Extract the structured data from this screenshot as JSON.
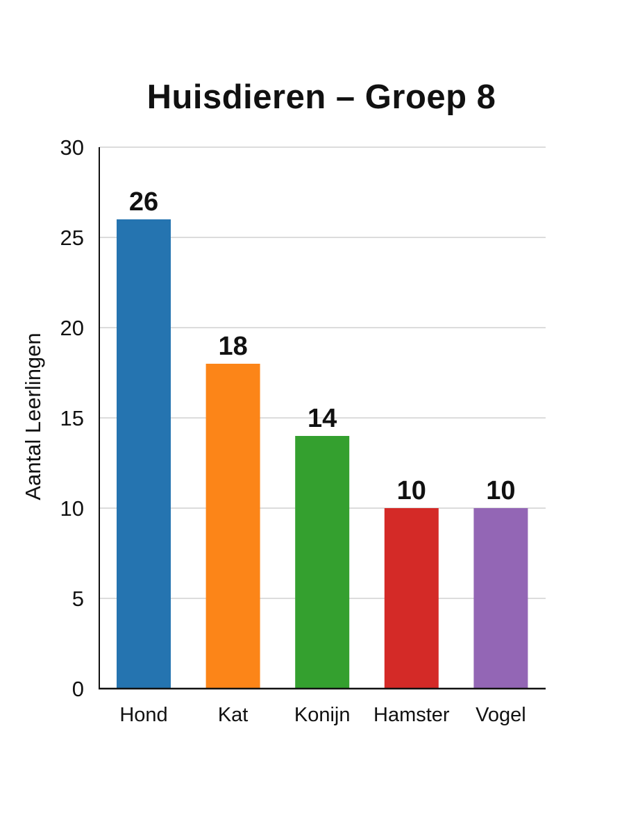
{
  "chart_data": {
    "type": "bar",
    "title": "Huisdieren – Groep 8",
    "xlabel": "",
    "ylabel": "Aantal Leerlingen",
    "categories": [
      "Hond",
      "Kat",
      "Konijn",
      "Hamster",
      "Vogel"
    ],
    "values": [
      26,
      18,
      14,
      10,
      10
    ],
    "colors": [
      "#2574b0",
      "#fc8518",
      "#34a02f",
      "#d42a27",
      "#9366b5"
    ],
    "ylim": [
      0,
      30
    ],
    "yticks": [
      "0",
      "5",
      "10",
      "15",
      "20",
      "25",
      "30"
    ],
    "grid": true,
    "legend": "none",
    "data_labels": true
  }
}
